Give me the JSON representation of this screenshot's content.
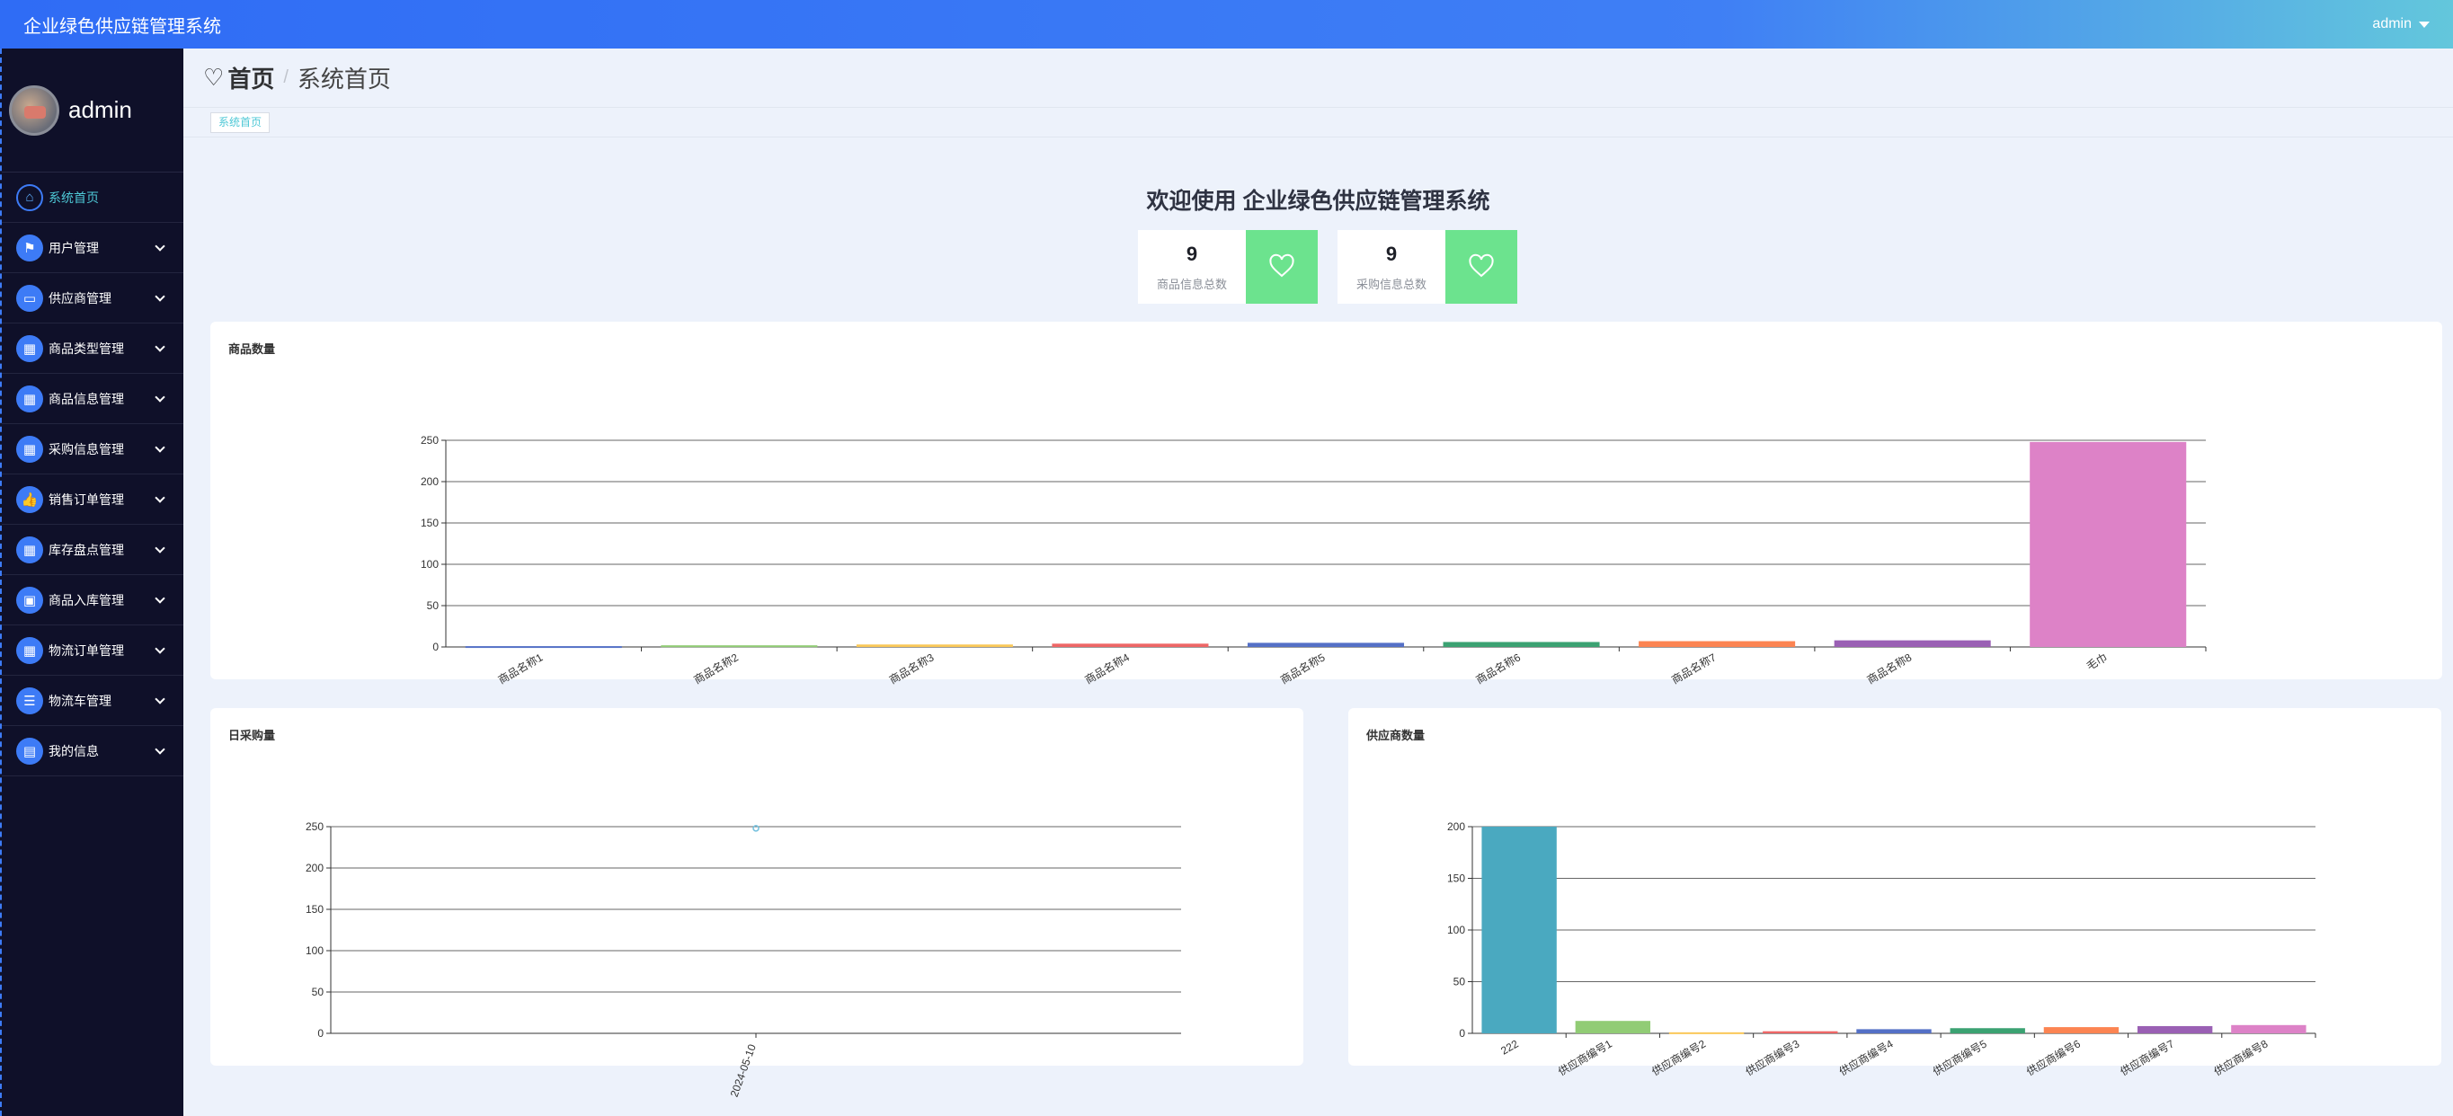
{
  "app": {
    "title": "企业绿色供应链管理系统",
    "user": "admin"
  },
  "sidebar": {
    "username": "admin",
    "items": [
      {
        "label": "系统首页",
        "icon": "home-icon"
      },
      {
        "label": "用户管理",
        "icon": "flag-icon"
      },
      {
        "label": "供应商管理",
        "icon": "chat-icon"
      },
      {
        "label": "商品类型管理",
        "icon": "grid-icon"
      },
      {
        "label": "商品信息管理",
        "icon": "grid-icon"
      },
      {
        "label": "采购信息管理",
        "icon": "grid-icon"
      },
      {
        "label": "销售订单管理",
        "icon": "thumb-icon"
      },
      {
        "label": "库存盘点管理",
        "icon": "grid-icon"
      },
      {
        "label": "商品入库管理",
        "icon": "briefcase-icon"
      },
      {
        "label": "物流订单管理",
        "icon": "grid-icon"
      },
      {
        "label": "物流车管理",
        "icon": "list-icon"
      },
      {
        "label": "我的信息",
        "icon": "card-icon"
      }
    ]
  },
  "breadcrumb": {
    "home": "首页",
    "separator": "/",
    "current": "系统首页"
  },
  "tags": {
    "active": "系统首页"
  },
  "welcome": "欢迎使用 企业绿色供应链管理系统",
  "stats": [
    {
      "value": "9",
      "label": "商品信息总数",
      "icon": "heart-icon"
    },
    {
      "value": "9",
      "label": "采购信息总数",
      "icon": "heart-icon"
    }
  ],
  "charts": {
    "goods": {
      "title": "商品数量"
    },
    "daily": {
      "title": "日采购量"
    },
    "supplier": {
      "title": "供应商数量"
    }
  },
  "colors": {
    "accent": "#3d7bf6",
    "green": "#6ce38e",
    "teal": "#4ec8d6"
  },
  "chart_data": [
    {
      "type": "bar",
      "title": "商品数量",
      "categories": [
        "商品名称1",
        "商品名称2",
        "商品名称3",
        "商品名称4",
        "商品名称5",
        "商品名称6",
        "商品名称7",
        "商品名称8",
        "毛巾"
      ],
      "values": [
        1,
        2,
        3,
        4,
        5,
        6,
        7,
        8,
        248
      ],
      "ylim": [
        0,
        250
      ],
      "yticks": [
        0,
        50,
        100,
        150,
        200,
        250
      ],
      "grid": true,
      "colors": [
        "#5470c6",
        "#91cc75",
        "#fac858",
        "#ee6666",
        "#5470c6",
        "#3ba272",
        "#fc8452",
        "#9a60b4",
        "#dd82c7"
      ]
    },
    {
      "type": "scatter",
      "title": "日采购量",
      "categories": [
        "2024-05-10"
      ],
      "values": [
        248
      ],
      "ylim": [
        0,
        250
      ],
      "yticks": [
        0,
        50,
        100,
        150,
        200,
        250
      ],
      "grid": true,
      "colors": [
        "#73c0de"
      ]
    },
    {
      "type": "bar",
      "title": "供应商数量",
      "categories": [
        "222",
        "供应商编号1",
        "供应商编号2",
        "供应商编号3",
        "供应商编号4",
        "供应商编号5",
        "供应商编号6",
        "供应商编号7",
        "供应商编号8"
      ],
      "values": [
        200,
        12,
        1,
        2,
        4,
        5,
        6,
        7,
        8
      ],
      "ylim": [
        0,
        200
      ],
      "yticks": [
        0,
        50,
        100,
        150,
        200
      ],
      "grid": true,
      "colors": [
        "#4aa9c0",
        "#91cc75",
        "#fac858",
        "#ee6666",
        "#5470c6",
        "#3ba272",
        "#fc8452",
        "#9a60b4",
        "#dd82c7"
      ]
    }
  ]
}
